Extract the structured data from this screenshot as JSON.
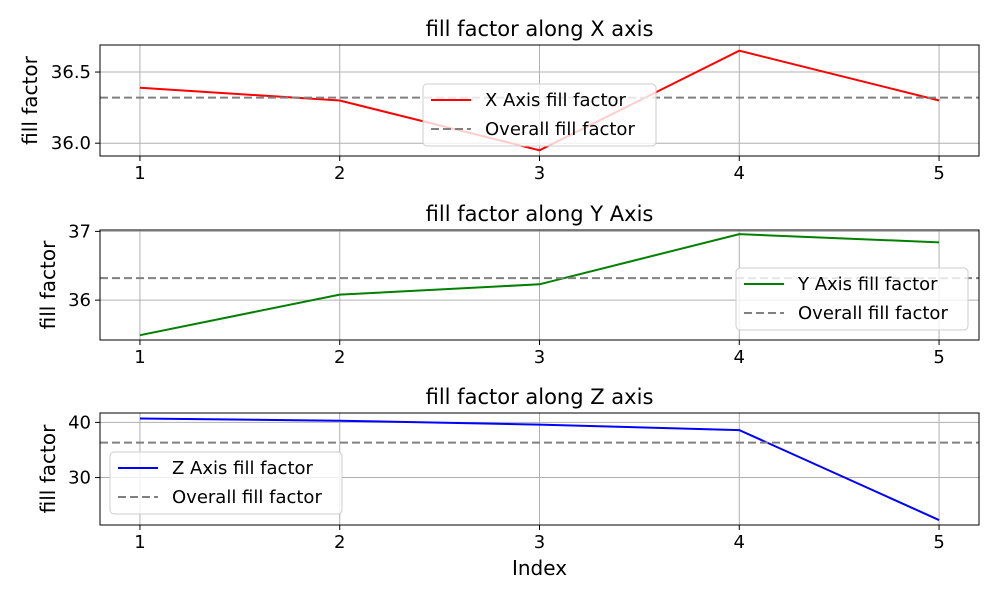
{
  "chart_data": [
    {
      "type": "line",
      "title": "fill factor along X axis",
      "xlabel": "",
      "ylabel": "fill factor",
      "x": [
        1,
        2,
        3,
        4,
        5
      ],
      "xlim": [
        0.8,
        5.2
      ],
      "ylim": [
        35.91,
        36.69
      ],
      "yticks": [
        36.0,
        36.5
      ],
      "ytick_labels": [
        "36.0",
        "36.5"
      ],
      "xtick_labels": [
        "1",
        "2",
        "3",
        "4",
        "5"
      ],
      "grid": true,
      "legend_position": "center",
      "series": [
        {
          "name": "X Axis fill factor",
          "values": [
            36.39,
            36.3,
            35.95,
            36.65,
            36.3
          ],
          "color": "#ff0000",
          "style": "solid"
        },
        {
          "name": "Overall fill factor",
          "values": [
            36.32,
            36.32,
            36.32,
            36.32,
            36.32
          ],
          "color": "#808080",
          "style": "dashed"
        }
      ]
    },
    {
      "type": "line",
      "title": "fill factor along Y Axis",
      "xlabel": "",
      "ylabel": "fill factor",
      "x": [
        1,
        2,
        3,
        4,
        5
      ],
      "xlim": [
        0.8,
        5.2
      ],
      "ylim": [
        35.42,
        37.02
      ],
      "yticks": [
        36,
        37
      ],
      "ytick_labels": [
        "36",
        "37"
      ],
      "xtick_labels": [
        "1",
        "2",
        "3",
        "4",
        "5"
      ],
      "grid": true,
      "legend_position": "center right",
      "series": [
        {
          "name": "Y Axis fill factor",
          "values": [
            35.49,
            36.08,
            36.23,
            36.96,
            36.84
          ],
          "color": "#008000",
          "style": "solid"
        },
        {
          "name": "Overall fill factor",
          "values": [
            36.32,
            36.32,
            36.32,
            36.32,
            36.32
          ],
          "color": "#808080",
          "style": "dashed"
        }
      ]
    },
    {
      "type": "line",
      "title": "fill factor along Z axis",
      "xlabel": "Index",
      "ylabel": "fill factor",
      "x": [
        1,
        2,
        3,
        4,
        5
      ],
      "xlim": [
        0.8,
        5.2
      ],
      "ylim": [
        21.4,
        41.7
      ],
      "yticks": [
        30,
        40
      ],
      "ytick_labels": [
        "30",
        "40"
      ],
      "xtick_labels": [
        "1",
        "2",
        "3",
        "4",
        "5"
      ],
      "grid": true,
      "legend_position": "lower left",
      "series": [
        {
          "name": "Z Axis fill factor",
          "values": [
            40.7,
            40.3,
            39.6,
            38.6,
            22.3
          ],
          "color": "#0000ff",
          "style": "solid"
        },
        {
          "name": "Overall fill factor",
          "values": [
            36.32,
            36.32,
            36.32,
            36.32,
            36.32
          ],
          "color": "#808080",
          "style": "dashed"
        }
      ]
    }
  ]
}
